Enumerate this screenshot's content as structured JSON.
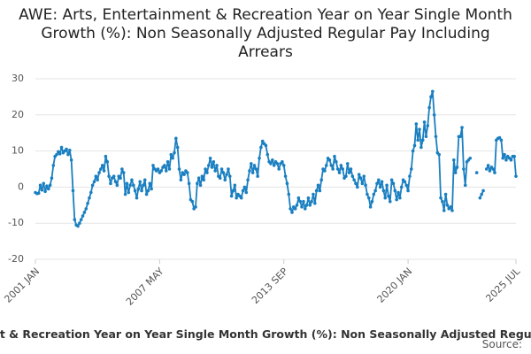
{
  "chart_data": {
    "type": "line",
    "title": "AWE: Arts, Entertainment & Recreation Year on Year Single Month Growth (%): Non Seasonally Adjusted Regular Pay Including Arrears",
    "source_label": "Source:",
    "ylim": [
      -20,
      30
    ],
    "yticks": [
      -20,
      -10,
      0,
      10,
      20,
      30
    ],
    "grid": true,
    "categories": [
      "2001 JAN",
      null,
      null,
      null,
      null,
      null,
      null,
      null,
      null,
      null,
      null,
      null,
      null,
      null,
      null,
      null,
      null,
      null,
      null,
      null,
      null,
      null,
      null,
      null,
      null,
      null,
      null,
      null,
      null,
      null,
      null,
      null,
      null,
      null,
      null,
      null,
      null,
      null,
      null,
      null,
      null,
      null,
      null,
      null,
      null,
      null,
      null,
      null,
      null,
      null,
      null,
      null,
      null,
      null,
      null,
      null,
      null,
      null,
      null,
      null,
      null,
      null,
      null,
      null,
      null,
      null,
      null,
      null,
      null,
      null,
      null,
      null,
      null,
      null,
      null,
      null,
      "2007 MAY",
      null,
      null,
      null,
      null,
      null,
      null,
      null,
      null,
      null,
      null,
      null,
      null,
      null,
      null,
      null,
      null,
      null,
      null,
      null,
      null,
      null,
      null,
      null,
      null,
      null,
      null,
      null,
      null,
      null,
      null,
      null,
      null,
      null,
      null,
      null,
      null,
      null,
      null,
      null,
      null,
      null,
      null,
      null,
      null,
      null,
      null,
      null,
      null,
      null,
      null,
      null,
      null,
      null,
      null,
      null,
      null,
      null,
      null,
      null,
      null,
      null,
      null,
      null,
      null,
      null,
      null,
      null,
      null,
      null,
      null,
      null,
      null,
      null,
      null,
      null,
      "2013 SEP",
      null,
      null,
      null,
      null,
      null,
      null,
      null,
      null,
      null,
      null,
      null,
      null,
      null,
      null,
      null,
      null,
      null,
      null,
      null,
      null,
      null,
      null,
      null,
      null,
      null,
      null,
      null,
      null,
      null,
      null,
      null,
      null,
      null,
      null,
      null,
      null,
      null,
      null,
      null,
      null,
      null,
      null,
      null,
      null,
      null,
      null,
      null,
      null,
      null,
      null,
      null,
      null,
      null,
      null,
      null,
      null,
      null,
      null,
      null,
      null,
      null,
      null,
      null,
      null,
      null,
      null,
      null,
      null,
      null,
      null,
      null,
      null,
      null,
      null,
      null,
      "2020 JAN",
      null,
      null,
      null,
      null,
      null,
      null,
      null,
      null,
      null,
      null,
      null,
      null,
      null,
      null,
      null,
      null,
      null,
      null,
      null,
      null,
      null,
      null,
      null,
      null,
      null,
      null,
      null,
      null,
      null,
      null,
      null,
      null,
      null,
      null,
      null,
      null,
      null,
      null,
      null,
      null,
      null,
      null,
      null,
      null,
      null,
      null,
      null,
      null,
      null,
      null,
      null,
      null,
      null,
      null,
      null,
      null,
      null,
      null,
      null,
      null,
      null,
      null,
      null,
      null,
      null,
      "2025 JUL"
    ],
    "series": [
      {
        "name": "AWE: Arts, Entertainment & Recreation Year on Year Single Month Growth (%): Non Seasonally Adjusted Regular Pay Including Arrears",
        "color": "#1a7fc1",
        "values": [
          -1.5,
          -1.8,
          -1.7,
          0.5,
          -0.8,
          1,
          -1.2,
          0.3,
          -0.5,
          0.5,
          2.5,
          6,
          8.5,
          9,
          9.8,
          9.2,
          11,
          9.5,
          10,
          10.5,
          9,
          10.2,
          7.5,
          -1,
          -9,
          -10.5,
          -10.8,
          -10,
          -9,
          -8,
          -7,
          -6,
          -4.5,
          -3,
          -1.5,
          0.5,
          1.5,
          3,
          2,
          4,
          5,
          6,
          4.5,
          8.5,
          7,
          3,
          1,
          2.5,
          3,
          1.5,
          0.5,
          3,
          2.5,
          5,
          4,
          -2,
          1,
          -1.5,
          0.5,
          2,
          0.5,
          -1,
          -3,
          -0.5,
          1.5,
          -1,
          0.5,
          2,
          -2,
          -1,
          1,
          -0.5,
          6,
          5,
          4.5,
          5,
          4,
          4.5,
          5.5,
          6,
          4.5,
          7,
          5,
          9,
          8,
          9.5,
          13.5,
          11,
          5,
          2,
          4,
          3.5,
          4.5,
          4,
          1,
          -3.5,
          -4,
          -6,
          -5.5,
          1,
          2.5,
          0.5,
          3,
          2,
          5,
          4,
          6,
          8,
          5.5,
          7,
          4.5,
          6,
          3,
          2.5,
          5,
          4,
          2,
          3.5,
          5,
          3,
          -2.5,
          -1,
          0.5,
          -3,
          -2,
          -2.5,
          -3,
          -1,
          0,
          -1.5,
          2,
          4.5,
          6.5,
          4,
          6,
          5,
          3,
          8,
          11,
          12.7,
          12,
          11.5,
          9,
          7,
          6.5,
          7.5,
          6,
          7,
          6.5,
          5,
          6.5,
          7,
          6,
          3,
          1,
          -2,
          -6,
          -7,
          -5.5,
          -6,
          -5,
          -3,
          -4,
          -5.5,
          -4,
          -6,
          -5,
          -3,
          -5,
          -4,
          -2,
          -4.5,
          -1,
          0.5,
          -1,
          2,
          5,
          4.5,
          6,
          8,
          7.5,
          6,
          5,
          8.5,
          7,
          5,
          4,
          6,
          5,
          2.5,
          3,
          6.5,
          4,
          5,
          3,
          2,
          1,
          0,
          3.5,
          2.5,
          1,
          3,
          0.5,
          -2,
          -3,
          -5.5,
          -4,
          -2,
          -1,
          1,
          2,
          0,
          1.5,
          -1,
          -3,
          0.5,
          -2.5,
          -4,
          2,
          1,
          -1,
          -3.5,
          -1.5,
          -3,
          0,
          2,
          1.5,
          0.5,
          -1,
          3,
          5,
          10,
          11.5,
          17.5,
          13,
          16,
          11,
          13,
          18,
          14,
          17,
          22,
          25,
          26.5,
          20,
          14,
          9.5,
          9,
          -3,
          -4,
          -6.5,
          -2,
          -5,
          -6,
          -5.5,
          -6.5,
          7.5,
          4,
          5.5,
          14,
          14,
          16.5,
          5,
          0.5,
          7,
          7.5,
          8,
          null,
          null,
          null,
          4,
          null,
          -3,
          -2,
          -1,
          null,
          5,
          6,
          4.5,
          5.5,
          5,
          4,
          13,
          13.5,
          13.7,
          13,
          8,
          9,
          7.5,
          8.5,
          8,
          7.5,
          8.5,
          8.5,
          3
        ]
      }
    ]
  }
}
